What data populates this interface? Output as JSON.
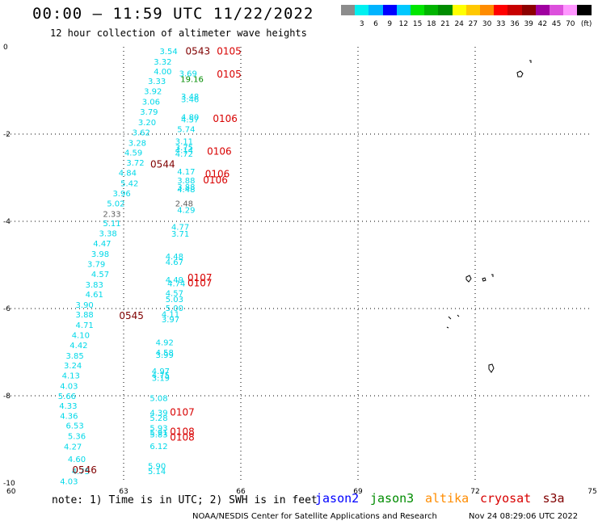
{
  "header": {
    "title": "00:00 – 11:59 UTC 11/22/2022",
    "subtitle": "12 hour collection of altimeter wave heights"
  },
  "color_scale": {
    "unit": "(ft)",
    "bins": [
      {
        "color": "#8c8c8c",
        "label": ""
      },
      {
        "color": "#00f0f0",
        "label": "3"
      },
      {
        "color": "#00b4ff",
        "label": "6"
      },
      {
        "color": "#0000ff",
        "label": "9"
      },
      {
        "color": "#00c8ff",
        "label": "12"
      },
      {
        "color": "#00e600",
        "label": "15"
      },
      {
        "color": "#00b400",
        "label": "18"
      },
      {
        "color": "#008c00",
        "label": "21"
      },
      {
        "color": "#ffff00",
        "label": "24"
      },
      {
        "color": "#ffc800",
        "label": "27"
      },
      {
        "color": "#ff8c00",
        "label": "30"
      },
      {
        "color": "#ff0000",
        "label": "33"
      },
      {
        "color": "#c80000",
        "label": "36"
      },
      {
        "color": "#8c0000",
        "label": "39"
      },
      {
        "color": "#a000a0",
        "label": "42"
      },
      {
        "color": "#dc50dc",
        "label": "45"
      },
      {
        "color": "#ff96ff",
        "label": "70"
      },
      {
        "color": "#000000",
        "label": ""
      }
    ]
  },
  "map": {
    "lon_range": [
      60,
      75
    ],
    "lat_range": [
      -10,
      0
    ],
    "lat_ticks": [
      "0",
      "-2",
      "-4",
      "-6",
      "-8",
      "-10"
    ],
    "lon_ticks": [
      "60",
      "63",
      "66",
      "69",
      "72",
      "75"
    ],
    "colors": {
      "cyan": "#00d8e8",
      "red": "#d80000",
      "maroon": "#800000",
      "green": "#008c00",
      "gray": "#606060"
    },
    "readings": [
      {
        "lon": 61.6,
        "lat": -9.95,
        "text": "4.03",
        "c": "cyan"
      },
      {
        "lon": 61.9,
        "lat": -9.72,
        "text": "4.75",
        "c": "cyan"
      },
      {
        "lon": 61.8,
        "lat": -9.44,
        "text": "4.60",
        "c": "cyan"
      },
      {
        "lon": 61.7,
        "lat": -9.16,
        "text": "4.27",
        "c": "cyan"
      },
      {
        "lon": 61.8,
        "lat": -8.92,
        "text": "5.36",
        "c": "cyan"
      },
      {
        "lon": 61.75,
        "lat": -8.68,
        "text": "6.53",
        "c": "cyan"
      },
      {
        "lon": 61.6,
        "lat": -8.45,
        "text": "4.36",
        "c": "cyan"
      },
      {
        "lon": 61.58,
        "lat": -8.22,
        "text": "4.33",
        "c": "cyan"
      },
      {
        "lon": 61.55,
        "lat": -8.0,
        "text": "5.66",
        "c": "cyan"
      },
      {
        "lon": 61.6,
        "lat": -7.77,
        "text": "4.03",
        "c": "cyan"
      },
      {
        "lon": 61.65,
        "lat": -7.53,
        "text": "4.13",
        "c": "cyan"
      },
      {
        "lon": 61.7,
        "lat": -7.3,
        "text": "3.24",
        "c": "cyan"
      },
      {
        "lon": 61.75,
        "lat": -7.07,
        "text": "3.85",
        "c": "cyan"
      },
      {
        "lon": 61.85,
        "lat": -6.83,
        "text": "4.42",
        "c": "cyan"
      },
      {
        "lon": 61.9,
        "lat": -6.6,
        "text": "4.10",
        "c": "cyan"
      },
      {
        "lon": 62.0,
        "lat": -6.37,
        "text": "4.71",
        "c": "cyan"
      },
      {
        "lon": 62.0,
        "lat": -6.13,
        "text": "3.88",
        "c": "cyan"
      },
      {
        "lon": 62.0,
        "lat": -5.91,
        "text": "3.90",
        "c": "cyan"
      },
      {
        "lon": 62.25,
        "lat": -5.67,
        "text": "4.61",
        "c": "cyan"
      },
      {
        "lon": 62.25,
        "lat": -5.44,
        "text": "3.83",
        "c": "cyan"
      },
      {
        "lon": 62.4,
        "lat": -5.2,
        "text": "4.57",
        "c": "cyan"
      },
      {
        "lon": 62.3,
        "lat": -4.97,
        "text": "3.79",
        "c": "cyan"
      },
      {
        "lon": 62.4,
        "lat": -4.74,
        "text": "3.98",
        "c": "cyan"
      },
      {
        "lon": 62.45,
        "lat": -4.5,
        "text": "4.47",
        "c": "cyan"
      },
      {
        "lon": 62.6,
        "lat": -4.27,
        "text": "3.38",
        "c": "cyan"
      },
      {
        "lon": 62.7,
        "lat": -4.04,
        "text": "5.11",
        "c": "cyan"
      },
      {
        "lon": 62.7,
        "lat": -3.82,
        "text": "2.33",
        "c": "gray"
      },
      {
        "lon": 62.8,
        "lat": -3.58,
        "text": "5.02",
        "c": "cyan"
      },
      {
        "lon": 62.95,
        "lat": -3.35,
        "text": "3.96",
        "c": "cyan"
      },
      {
        "lon": 63.15,
        "lat": -3.12,
        "text": "5.42",
        "c": "cyan"
      },
      {
        "lon": 63.1,
        "lat": -2.88,
        "text": "4.84",
        "c": "cyan"
      },
      {
        "lon": 63.3,
        "lat": -2.65,
        "text": "3.72",
        "c": "cyan"
      },
      {
        "lon": 63.25,
        "lat": -2.42,
        "text": "4.59",
        "c": "cyan"
      },
      {
        "lon": 63.35,
        "lat": -2.19,
        "text": "3.28",
        "c": "cyan"
      },
      {
        "lon": 63.45,
        "lat": -1.95,
        "text": "3.62",
        "c": "cyan"
      },
      {
        "lon": 63.6,
        "lat": -1.72,
        "text": "3.20",
        "c": "cyan"
      },
      {
        "lon": 63.65,
        "lat": -1.48,
        "text": "3.79",
        "c": "cyan"
      },
      {
        "lon": 63.7,
        "lat": -1.25,
        "text": "3.06",
        "c": "cyan"
      },
      {
        "lon": 63.75,
        "lat": -1.01,
        "text": "3.92",
        "c": "cyan"
      },
      {
        "lon": 63.85,
        "lat": -0.78,
        "text": "3.33",
        "c": "cyan"
      },
      {
        "lon": 64.0,
        "lat": -0.56,
        "text": "4.00",
        "c": "cyan"
      },
      {
        "lon": 64.0,
        "lat": -0.33,
        "text": "3.32",
        "c": "cyan"
      },
      {
        "lon": 64.15,
        "lat": -0.09,
        "text": "3.54",
        "c": "cyan"
      },
      {
        "lon": 64.65,
        "lat": -0.6,
        "text": "3.69",
        "c": "cyan"
      },
      {
        "lon": 64.75,
        "lat": -0.73,
        "text": "19.16",
        "c": "green"
      },
      {
        "lon": 64.7,
        "lat": -1.13,
        "text": "3.48",
        "c": "cyan"
      },
      {
        "lon": 64.7,
        "lat": -1.19,
        "text": "3.46",
        "c": "cyan"
      },
      {
        "lon": 64.7,
        "lat": -1.6,
        "text": "4.80",
        "c": "cyan"
      },
      {
        "lon": 64.7,
        "lat": -1.66,
        "text": "4.57",
        "c": "cyan"
      },
      {
        "lon": 64.6,
        "lat": -1.88,
        "text": "5.74",
        "c": "cyan"
      },
      {
        "lon": 64.55,
        "lat": -2.16,
        "text": "3.11",
        "c": "cyan"
      },
      {
        "lon": 64.55,
        "lat": -2.3,
        "text": "3.75",
        "c": "cyan"
      },
      {
        "lon": 64.55,
        "lat": -2.36,
        "text": "4.14",
        "c": "cyan"
      },
      {
        "lon": 64.55,
        "lat": -2.44,
        "text": "4.72",
        "c": "cyan"
      },
      {
        "lon": 64.6,
        "lat": -2.85,
        "text": "4.17",
        "c": "cyan"
      },
      {
        "lon": 64.6,
        "lat": -3.06,
        "text": "3.88",
        "c": "cyan"
      },
      {
        "lon": 64.6,
        "lat": -3.2,
        "text": "3.88",
        "c": "cyan"
      },
      {
        "lon": 64.6,
        "lat": -3.26,
        "text": "4.48",
        "c": "cyan"
      },
      {
        "lon": 64.55,
        "lat": -3.58,
        "text": "2.48",
        "c": "gray"
      },
      {
        "lon": 64.6,
        "lat": -3.73,
        "text": "4.29",
        "c": "cyan"
      },
      {
        "lon": 64.45,
        "lat": -4.12,
        "text": "4.77",
        "c": "cyan"
      },
      {
        "lon": 64.45,
        "lat": -4.28,
        "text": "3.71",
        "c": "cyan"
      },
      {
        "lon": 64.3,
        "lat": -4.8,
        "text": "4.48",
        "c": "cyan"
      },
      {
        "lon": 64.3,
        "lat": -4.93,
        "text": "4.67",
        "c": "cyan"
      },
      {
        "lon": 64.3,
        "lat": -5.33,
        "text": "4.49",
        "c": "cyan"
      },
      {
        "lon": 64.35,
        "lat": -5.42,
        "text": "4.74",
        "c": "cyan"
      },
      {
        "lon": 64.3,
        "lat": -5.64,
        "text": "4.57",
        "c": "cyan"
      },
      {
        "lon": 64.3,
        "lat": -5.78,
        "text": "5.03",
        "c": "cyan"
      },
      {
        "lon": 64.3,
        "lat": -5.98,
        "text": "5.00",
        "c": "cyan"
      },
      {
        "lon": 64.2,
        "lat": -6.12,
        "text": "4.11",
        "c": "cyan"
      },
      {
        "lon": 64.2,
        "lat": -6.24,
        "text": "3.97",
        "c": "cyan"
      },
      {
        "lon": 64.05,
        "lat": -6.77,
        "text": "4.92",
        "c": "cyan"
      },
      {
        "lon": 64.05,
        "lat": -7.0,
        "text": "4.58",
        "c": "cyan"
      },
      {
        "lon": 64.05,
        "lat": -7.06,
        "text": "3.99",
        "c": "cyan"
      },
      {
        "lon": 63.95,
        "lat": -7.43,
        "text": "4.97",
        "c": "cyan"
      },
      {
        "lon": 63.95,
        "lat": -7.52,
        "text": "4.75",
        "c": "cyan"
      },
      {
        "lon": 63.95,
        "lat": -7.58,
        "text": "3.19",
        "c": "cyan"
      },
      {
        "lon": 63.9,
        "lat": -8.05,
        "text": "5.08",
        "c": "cyan"
      },
      {
        "lon": 63.9,
        "lat": -8.38,
        "text": "4.39",
        "c": "cyan"
      },
      {
        "lon": 63.9,
        "lat": -8.5,
        "text": "5.28",
        "c": "cyan"
      },
      {
        "lon": 63.9,
        "lat": -8.73,
        "text": "5.93",
        "c": "cyan"
      },
      {
        "lon": 63.9,
        "lat": -8.83,
        "text": "5.91",
        "c": "cyan"
      },
      {
        "lon": 63.9,
        "lat": -8.88,
        "text": "5.83",
        "c": "cyan"
      },
      {
        "lon": 63.9,
        "lat": -9.15,
        "text": "6.12",
        "c": "cyan"
      },
      {
        "lon": 63.85,
        "lat": -9.6,
        "text": "5.90",
        "c": "cyan"
      },
      {
        "lon": 63.85,
        "lat": -9.72,
        "text": "5.14",
        "c": "cyan"
      }
    ],
    "times": [
      {
        "lon": 64.9,
        "lat": -0.1,
        "text": "0543",
        "c": "maroon"
      },
      {
        "lon": 65.7,
        "lat": -0.1,
        "text": "0105",
        "c": "red"
      },
      {
        "lon": 65.7,
        "lat": -0.63,
        "text": "0105",
        "c": "red"
      },
      {
        "lon": 65.6,
        "lat": -1.65,
        "text": "0106",
        "c": "red"
      },
      {
        "lon": 65.45,
        "lat": -2.4,
        "text": "0106",
        "c": "red"
      },
      {
        "lon": 64.0,
        "lat": -2.69,
        "text": "0544",
        "c": "maroon"
      },
      {
        "lon": 65.4,
        "lat": -2.92,
        "text": "0106",
        "c": "red"
      },
      {
        "lon": 65.35,
        "lat": -3.06,
        "text": "0106",
        "c": "red"
      },
      {
        "lon": 64.95,
        "lat": -5.3,
        "text": "0107",
        "c": "red"
      },
      {
        "lon": 64.95,
        "lat": -5.42,
        "text": "0107",
        "c": "red"
      },
      {
        "lon": 63.2,
        "lat": -6.17,
        "text": "0545",
        "c": "maroon"
      },
      {
        "lon": 64.5,
        "lat": -8.38,
        "text": "0107",
        "c": "red"
      },
      {
        "lon": 64.5,
        "lat": -8.82,
        "text": "0108",
        "c": "red"
      },
      {
        "lon": 64.5,
        "lat": -8.95,
        "text": "0108",
        "c": "red"
      },
      {
        "lon": 62.0,
        "lat": -9.7,
        "text": "0546",
        "c": "maroon"
      }
    ]
  },
  "footer": {
    "note": "note:  1) Time is in UTC; 2) SWH is in feet",
    "satellites": [
      {
        "name": "jason2",
        "color": "#0000ff"
      },
      {
        "name": "jason3",
        "color": "#008c00"
      },
      {
        "name": "altika",
        "color": "#ff8c00"
      },
      {
        "name": "cryosat",
        "color": "#d80000"
      },
      {
        "name": "s3a",
        "color": "#800000"
      }
    ],
    "credit": "NOAA/NESDIS Center for Satellite Applications and Research",
    "timestamp": "Nov 24 08:29:06 UTC 2022"
  }
}
